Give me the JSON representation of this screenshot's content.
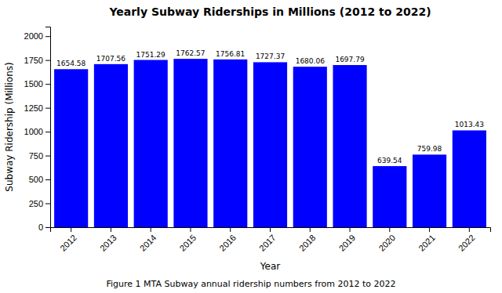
{
  "chart_data": {
    "type": "bar",
    "title": "Yearly Subway Riderships in Millions (2012 to 2022)",
    "xlabel": "Year",
    "ylabel": "Subway Ridership (Millions)",
    "caption": "Figure 1 MTA Subway annual ridership numbers from 2012 to 2022",
    "categories": [
      "2012",
      "2013",
      "2014",
      "2015",
      "2016",
      "2017",
      "2018",
      "2019",
      "2020",
      "2021",
      "2022"
    ],
    "values": [
      1654.58,
      1707.56,
      1751.29,
      1762.57,
      1756.81,
      1727.37,
      1680.06,
      1697.79,
      639.54,
      759.98,
      1013.43
    ],
    "color": "#0000ff",
    "ylim": [
      0,
      2100
    ],
    "yticks": [
      0,
      250,
      500,
      750,
      1000,
      1250,
      1500,
      1750,
      2000
    ],
    "data_labels": true,
    "grid": false
  }
}
